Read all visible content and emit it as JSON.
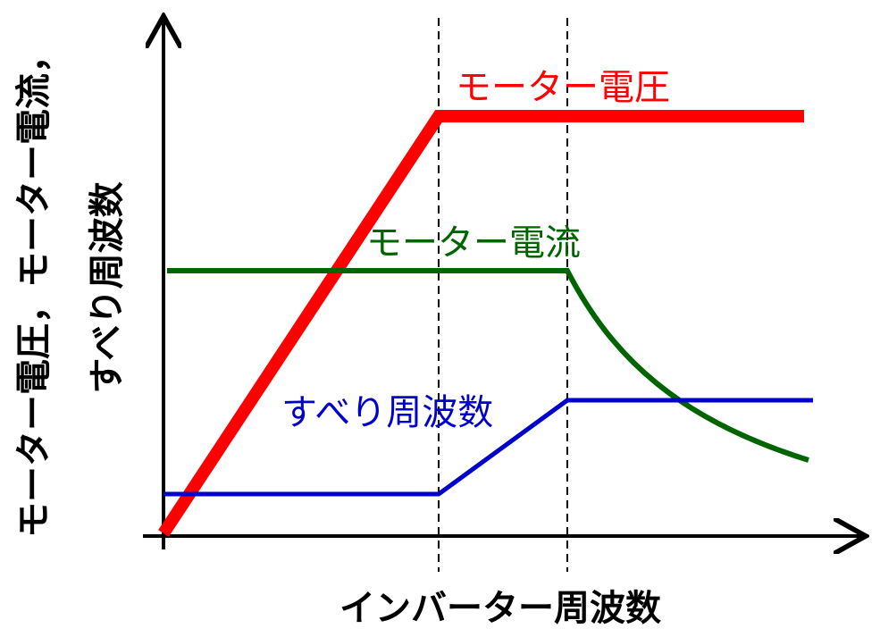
{
  "x_axis_label": "インバーター周波数",
  "y_axis_label": [
    "モーター電圧，モーター電流，",
    "すべり周波数"
  ],
  "curves": [
    {
      "label": "モーター電圧"
    },
    {
      "label": "モーター電流"
    },
    {
      "label": "すべり周波数"
    }
  ]
}
